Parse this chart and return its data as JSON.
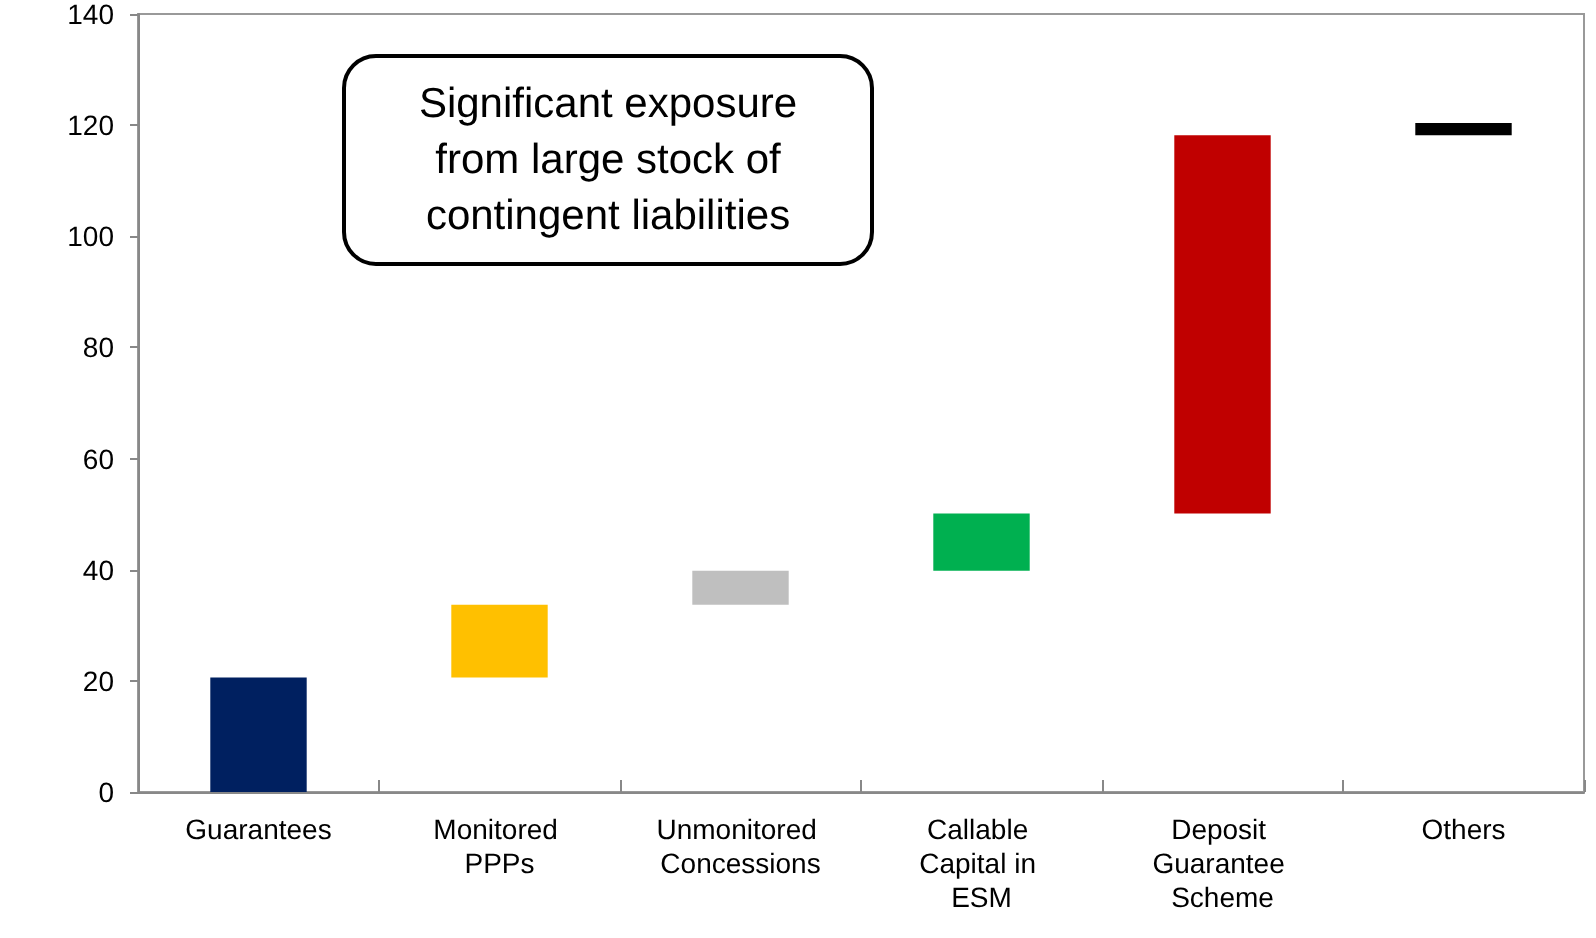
{
  "chart_data": {
    "type": "bar",
    "categories": [
      "Guarantees",
      "Monitored PPPs",
      "Unmonitored Concessions",
      "Callable Capital in ESM",
      "Deposit Guarantee Scheme",
      "Others"
    ],
    "base": [
      0,
      20.6,
      33.7,
      39.8,
      50.1,
      118.2
    ],
    "values": [
      20.6,
      13.1,
      6.1,
      10.3,
      68.1,
      2.2
    ],
    "colors": [
      "#002060",
      "#ffc000",
      "#bfbfbf",
      "#00b050",
      "#c00000",
      "#000000"
    ],
    "ylim": [
      0,
      140
    ],
    "yticks": [
      0,
      20,
      40,
      60,
      80,
      100,
      120,
      140
    ],
    "grid": false,
    "annotations": [
      "Significant exposure\nfrom large stock of\ncontingent liabilities"
    ]
  }
}
